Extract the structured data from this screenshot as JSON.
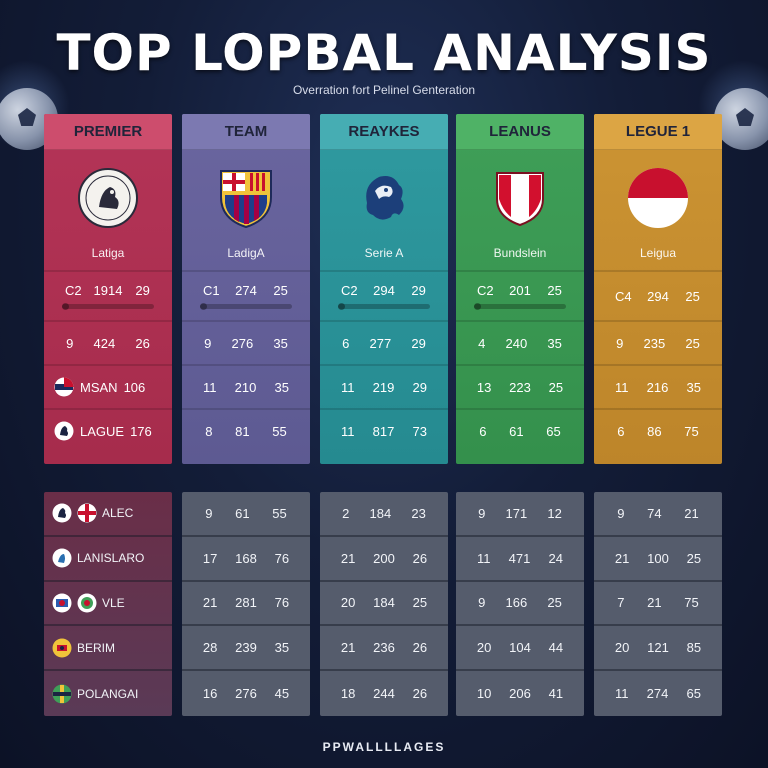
{
  "header": {
    "title": "TOP LOPBAL ANALYSIS",
    "subtitle": "Overration fort Pelinel Genteration"
  },
  "columns": [
    {
      "header": "PREMIER",
      "league": "Latiga",
      "color": "#b43457",
      "logo_icon": "lion-crest-icon",
      "stats_row": [
        "C2",
        "1914",
        "29"
      ],
      "rows": [
        [
          "9",
          "424",
          "26"
        ]
      ],
      "named_rows": [
        {
          "icon": "flag-icon",
          "label": "MSAN",
          "value": "106"
        },
        {
          "icon": "crest-icon",
          "label": "LAGUE",
          "value": "176"
        }
      ]
    },
    {
      "header": "TEAM",
      "league": "LadigA",
      "color": "#6a659f",
      "logo_icon": "barcelona-crest-icon",
      "stats_row": [
        "C1",
        "274",
        "25"
      ],
      "rows": [
        [
          "9",
          "276",
          "35"
        ],
        [
          "11",
          "210",
          "35"
        ],
        [
          "8",
          "81",
          "55"
        ]
      ]
    },
    {
      "header": "REAYKES",
      "league": "Serie A",
      "color": "#2f9aa0",
      "logo_icon": "lion-head-icon",
      "stats_row": [
        "C2",
        "294",
        "29"
      ],
      "rows": [
        [
          "6",
          "277",
          "29"
        ],
        [
          "11",
          "219",
          "29"
        ],
        [
          "11",
          "817",
          "73"
        ]
      ]
    },
    {
      "header": "LEANUS",
      "league": "Bundslein",
      "color": "#3f9f58",
      "logo_icon": "shield-icon",
      "stats_row": [
        "C2",
        "201",
        "25"
      ],
      "rows": [
        [
          "4",
          "240",
          "35"
        ],
        [
          "13",
          "223",
          "25"
        ],
        [
          "6",
          "61",
          "65"
        ]
      ]
    },
    {
      "header": "LEGUE 1",
      "league": "Leigua",
      "color": "#cc9433",
      "logo_icon": "circle-flag-icon",
      "stats_row": [
        "C4",
        "294",
        "25"
      ],
      "rows": [
        [
          "9",
          "235",
          "25"
        ],
        [
          "11",
          "216",
          "35"
        ],
        [
          "6",
          "86",
          "75"
        ]
      ]
    }
  ],
  "bottom_table": {
    "names": [
      {
        "icons": [
          "crest-icon",
          "flag-icon"
        ],
        "label": "ALEC"
      },
      {
        "icons": [
          "crest-icon"
        ],
        "label": "LANISLARO"
      },
      {
        "icons": [
          "crest-icon",
          "crest-icon"
        ],
        "label": "VLE"
      },
      {
        "icons": [
          "crest-icon"
        ],
        "label": "BERIM"
      },
      {
        "icons": [
          "crest-icon"
        ],
        "label": "POLANGAI"
      }
    ],
    "columns": [
      [
        [
          "9",
          "61",
          "55"
        ],
        [
          "17",
          "168",
          "76"
        ],
        [
          "21",
          "281",
          "76"
        ],
        [
          "28",
          "239",
          "35"
        ],
        [
          "16",
          "276",
          "45"
        ]
      ],
      [
        [
          "2",
          "184",
          "23"
        ],
        [
          "21",
          "200",
          "26"
        ],
        [
          "20",
          "184",
          "25"
        ],
        [
          "21",
          "236",
          "26"
        ],
        [
          "18",
          "244",
          "26"
        ]
      ],
      [
        [
          "9",
          "171",
          "12"
        ],
        [
          "11",
          "471",
          "24"
        ],
        [
          "9",
          "166",
          "25"
        ],
        [
          "20",
          "104",
          "44"
        ],
        [
          "10",
          "206",
          "41"
        ]
      ],
      [
        [
          "9",
          "74",
          "21"
        ],
        [
          "21",
          "100",
          "25"
        ],
        [
          "7",
          "21",
          "75"
        ],
        [
          "20",
          "121",
          "85"
        ],
        [
          "11",
          "274",
          "65"
        ]
      ]
    ]
  },
  "footer": "PPWALLLLAGES"
}
